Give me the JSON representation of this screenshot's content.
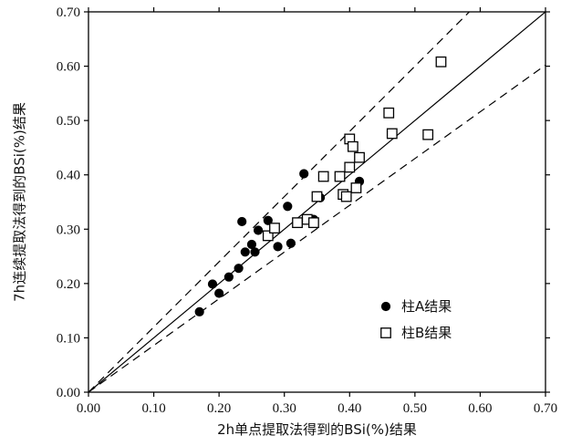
{
  "chart_data": {
    "type": "scatter",
    "xlabel": "2h单点提取法得到的BSi(%)结果",
    "ylabel": "7h连续提取法得到的BSi(%)结果",
    "xlim": [
      0,
      0.7
    ],
    "ylim": [
      0,
      0.7
    ],
    "x_ticks": [
      "0.00",
      "0.10",
      "0.20",
      "0.30",
      "0.40",
      "0.50",
      "0.60",
      "0.70"
    ],
    "y_ticks": [
      "0.00",
      "0.10",
      "0.20",
      "0.30",
      "0.40",
      "0.50",
      "0.60",
      "0.70"
    ],
    "grid": false,
    "legend_position": "bottom-right",
    "series": [
      {
        "name": "柱A结果",
        "marker": "filled-circle",
        "color": "#000000",
        "points": [
          [
            0.17,
            0.148
          ],
          [
            0.19,
            0.199
          ],
          [
            0.2,
            0.182
          ],
          [
            0.215,
            0.212
          ],
          [
            0.23,
            0.228
          ],
          [
            0.235,
            0.314
          ],
          [
            0.24,
            0.258
          ],
          [
            0.25,
            0.272
          ],
          [
            0.255,
            0.258
          ],
          [
            0.26,
            0.298
          ],
          [
            0.275,
            0.316
          ],
          [
            0.29,
            0.268
          ],
          [
            0.305,
            0.342
          ],
          [
            0.31,
            0.274
          ],
          [
            0.33,
            0.402
          ],
          [
            0.345,
            0.318
          ],
          [
            0.355,
            0.358
          ],
          [
            0.41,
            0.376
          ],
          [
            0.415,
            0.388
          ]
        ]
      },
      {
        "name": "柱B结果",
        "marker": "open-square",
        "color": "#000000",
        "points": [
          [
            0.275,
            0.288
          ],
          [
            0.285,
            0.302
          ],
          [
            0.32,
            0.312
          ],
          [
            0.335,
            0.318
          ],
          [
            0.345,
            0.312
          ],
          [
            0.35,
            0.36
          ],
          [
            0.36,
            0.397
          ],
          [
            0.385,
            0.397
          ],
          [
            0.39,
            0.364
          ],
          [
            0.395,
            0.36
          ],
          [
            0.4,
            0.466
          ],
          [
            0.4,
            0.414
          ],
          [
            0.405,
            0.452
          ],
          [
            0.41,
            0.376
          ],
          [
            0.415,
            0.432
          ],
          [
            0.46,
            0.514
          ],
          [
            0.465,
            0.476
          ],
          [
            0.52,
            0.474
          ],
          [
            0.54,
            0.608
          ]
        ]
      }
    ],
    "reference_lines": [
      {
        "style": "solid",
        "slope": 1.0
      },
      {
        "style": "dashed",
        "slope": 1.2
      },
      {
        "style": "dashed",
        "slope": 0.86
      }
    ]
  }
}
